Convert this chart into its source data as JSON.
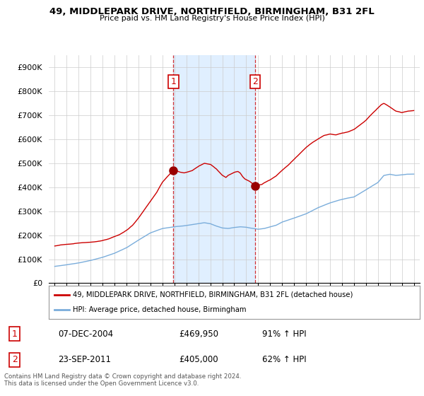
{
  "title1": "49, MIDDLEPARK DRIVE, NORTHFIELD, BIRMINGHAM, B31 2FL",
  "title2": "Price paid vs. HM Land Registry's House Price Index (HPI)",
  "ylim": [
    0,
    950000
  ],
  "yticks": [
    0,
    100000,
    200000,
    300000,
    400000,
    500000,
    600000,
    700000,
    800000,
    900000
  ],
  "ytick_labels": [
    "£0",
    "£100K",
    "£200K",
    "£300K",
    "£400K",
    "£500K",
    "£600K",
    "£700K",
    "£800K",
    "£900K"
  ],
  "sale1_date": 2004.92,
  "sale1_price": 469950,
  "sale1_label": "1",
  "sale2_date": 2011.72,
  "sale2_price": 405000,
  "sale2_label": "2",
  "red_line_color": "#cc0000",
  "blue_line_color": "#7aaddb",
  "shade_color": "#ddeeff",
  "grid_color": "#cccccc",
  "annotation_box_color": "#cc0000",
  "legend_entry1": "49, MIDDLEPARK DRIVE, NORTHFIELD, BIRMINGHAM, B31 2FL (detached house)",
  "legend_entry2": "HPI: Average price, detached house, Birmingham",
  "table_row1": [
    "1",
    "07-DEC-2004",
    "£469,950",
    "91% ↑ HPI"
  ],
  "table_row2": [
    "2",
    "23-SEP-2011",
    "£405,000",
    "62% ↑ HPI"
  ],
  "footer": "Contains HM Land Registry data © Crown copyright and database right 2024.\nThis data is licensed under the Open Government Licence v3.0.",
  "background_color": "#ffffff",
  "xlim_start": 1994.5,
  "xlim_end": 2025.5
}
